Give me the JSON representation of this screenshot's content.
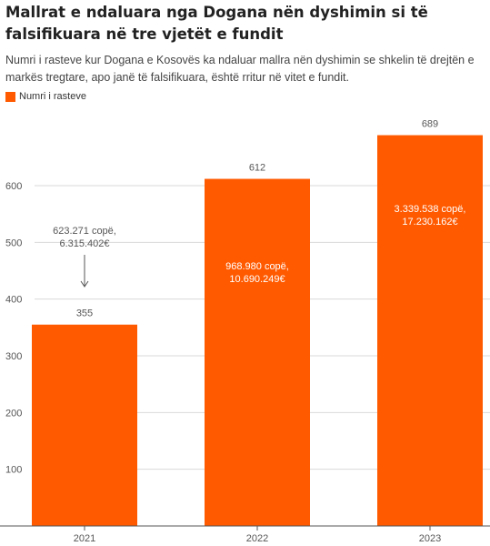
{
  "title": "Mallrat e ndaluara nga Dogana nën dyshimin si të falsifikuara në tre vjetët e fundit",
  "subtitle": "Numri i rasteve kur Dogana e Kosovës ka ndaluar mallra nën dyshimin se shkelin të drejtën e markës tregtare, apo janë të falsifikuara, është rritur në vitet e fundit.",
  "colors": {
    "bar": "#ff5a00",
    "grid": "#d9d9d9",
    "axis": "#555555",
    "text": "#555555"
  },
  "chart_data": {
    "type": "bar",
    "categories": [
      "2021",
      "2022",
      "2023"
    ],
    "series": [
      {
        "name": "Numri i rasteve",
        "values": [
          355,
          612,
          689
        ]
      }
    ],
    "yticks": [
      100,
      200,
      300,
      400,
      500,
      600
    ],
    "ylim": [
      0,
      720
    ],
    "grid": true,
    "legend": "top-left",
    "bar_annotations": [
      [
        "623.271 copë,",
        "6.315.402€"
      ],
      [
        "968.980 copë,",
        "10.690.249€"
      ],
      [
        "3.339.538 copë,",
        "17.230.162€"
      ]
    ]
  }
}
